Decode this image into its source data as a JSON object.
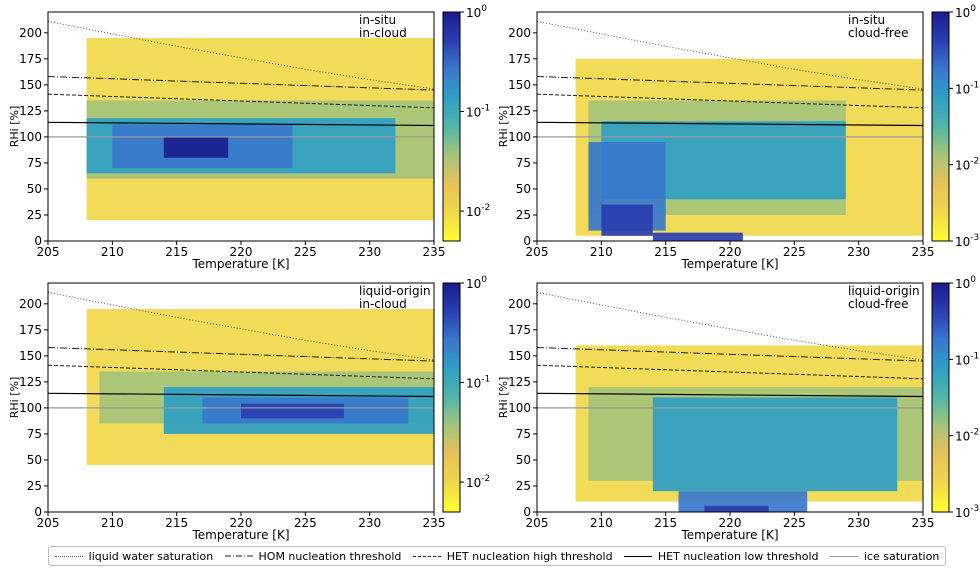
{
  "chart_data": [
    {
      "type": "heatmap",
      "title": "",
      "annotation": [
        "in-situ",
        "in-cloud"
      ],
      "xlabel": "Temperature [K]",
      "ylabel": "RHi [%]",
      "xlim": [
        205,
        235
      ],
      "ylim": [
        0,
        220
      ],
      "xticks": [
        "205",
        "210",
        "215",
        "220",
        "225",
        "230",
        "235"
      ],
      "yticks": [
        "0",
        "25",
        "50",
        "75",
        "100",
        "125",
        "150",
        "175",
        "200"
      ],
      "colorbar": {
        "scale": "log",
        "min": 0.005,
        "max": 1,
        "tick_values": [
          1,
          0.1,
          0.01
        ],
        "ticks": [
          "10",
          "10",
          "10"
        ],
        "exponents": [
          "0",
          "-1",
          "-2"
        ]
      },
      "density_regions": [
        {
          "T": [
            208,
            235
          ],
          "RH": [
            20,
            195
          ],
          "density": 0.008
        },
        {
          "T": [
            208,
            235
          ],
          "RH": [
            60,
            135
          ],
          "density": 0.03
        },
        {
          "T": [
            208,
            232
          ],
          "RH": [
            65,
            118
          ],
          "density": 0.1
        },
        {
          "T": [
            210,
            224
          ],
          "RH": [
            70,
            112
          ],
          "density": 0.3
        },
        {
          "T": [
            214,
            219
          ],
          "RH": [
            80,
            100
          ],
          "density": 0.8
        }
      ]
    },
    {
      "type": "heatmap",
      "title": "",
      "annotation": [
        "in-situ",
        "cloud-free"
      ],
      "xlabel": "Temperature [K]",
      "ylabel": "RHi [%]",
      "xlim": [
        205,
        235
      ],
      "ylim": [
        0,
        220
      ],
      "xticks": [
        "205",
        "210",
        "215",
        "220",
        "225",
        "230",
        "235"
      ],
      "yticks": [
        "0",
        "25",
        "50",
        "75",
        "100",
        "125",
        "150",
        "175",
        "200"
      ],
      "colorbar": {
        "scale": "log",
        "min": 0.001,
        "max": 1,
        "tick_values": [
          1,
          0.1,
          0.01,
          0.001
        ],
        "ticks": [
          "10",
          "10",
          "10",
          "10"
        ],
        "exponents": [
          "0",
          "-1",
          "-2",
          "-3"
        ]
      },
      "density_regions": [
        {
          "T": [
            208,
            235
          ],
          "RH": [
            5,
            175
          ],
          "density": 0.003
        },
        {
          "T": [
            209,
            229
          ],
          "RH": [
            25,
            135
          ],
          "density": 0.02
        },
        {
          "T": [
            210,
            229
          ],
          "RH": [
            40,
            115
          ],
          "density": 0.06
        },
        {
          "T": [
            209,
            215
          ],
          "RH": [
            10,
            95
          ],
          "density": 0.2
        },
        {
          "T": [
            210,
            214
          ],
          "RH": [
            5,
            35
          ],
          "density": 0.5
        },
        {
          "T": [
            214,
            221
          ],
          "RH": [
            0,
            8
          ],
          "density": 0.3
        }
      ]
    },
    {
      "type": "heatmap",
      "title": "",
      "annotation": [
        "liquid-origin",
        "in-cloud"
      ],
      "xlabel": "Temperature [K]",
      "ylabel": "RHi [%]",
      "xlim": [
        205,
        235
      ],
      "ylim": [
        0,
        220
      ],
      "xticks": [
        "205",
        "210",
        "215",
        "220",
        "225",
        "230",
        "235"
      ],
      "yticks": [
        "0",
        "25",
        "50",
        "75",
        "100",
        "125",
        "150",
        "175",
        "200"
      ],
      "colorbar": {
        "scale": "log",
        "min": 0.005,
        "max": 1,
        "tick_values": [
          1,
          0.1,
          0.01
        ],
        "ticks": [
          "10",
          "10",
          "10"
        ],
        "exponents": [
          "0",
          "-1",
          "-2"
        ]
      },
      "density_regions": [
        {
          "T": [
            208,
            235
          ],
          "RH": [
            45,
            195
          ],
          "density": 0.008
        },
        {
          "T": [
            209,
            235
          ],
          "RH": [
            85,
            135
          ],
          "density": 0.04
        },
        {
          "T": [
            214,
            235
          ],
          "RH": [
            75,
            120
          ],
          "density": 0.12
        },
        {
          "T": [
            217,
            233
          ],
          "RH": [
            85,
            110
          ],
          "density": 0.35
        },
        {
          "T": [
            220,
            228
          ],
          "RH": [
            90,
            104
          ],
          "density": 0.7
        }
      ]
    },
    {
      "type": "heatmap",
      "title": "",
      "annotation": [
        "liquid-origin",
        "cloud-free"
      ],
      "xlabel": "Temperature [K]",
      "ylabel": "RHi [%]",
      "xlim": [
        205,
        235
      ],
      "ylim": [
        0,
        220
      ],
      "xticks": [
        "205",
        "210",
        "215",
        "220",
        "225",
        "230",
        "235"
      ],
      "yticks": [
        "0",
        "25",
        "50",
        "75",
        "100",
        "125",
        "150",
        "175",
        "200"
      ],
      "colorbar": {
        "scale": "log",
        "min": 0.001,
        "max": 1,
        "tick_values": [
          1,
          0.1,
          0.01,
          0.001
        ],
        "ticks": [
          "10",
          "10",
          "10",
          "10"
        ],
        "exponents": [
          "0",
          "-1",
          "-2",
          "-3"
        ]
      },
      "density_regions": [
        {
          "T": [
            208,
            235
          ],
          "RH": [
            10,
            160
          ],
          "density": 0.003
        },
        {
          "T": [
            209,
            235
          ],
          "RH": [
            30,
            120
          ],
          "density": 0.015
        },
        {
          "T": [
            214,
            233
          ],
          "RH": [
            20,
            110
          ],
          "density": 0.05
        },
        {
          "T": [
            216,
            226
          ],
          "RH": [
            0,
            20
          ],
          "density": 0.2
        },
        {
          "T": [
            218,
            223
          ],
          "RH": [
            0,
            6
          ],
          "density": 0.5
        }
      ]
    }
  ],
  "reference_lines": [
    {
      "name": "liquid water saturation",
      "style": "dotted",
      "color": "#555555",
      "T": [
        205,
        210,
        215,
        220,
        225,
        230,
        235
      ],
      "RH": [
        211,
        199,
        187,
        176,
        165,
        155,
        146
      ]
    },
    {
      "name": "HOM nucleation threshold",
      "style": "dashdot",
      "color": "#222222",
      "T": [
        205,
        235
      ],
      "RH": [
        158,
        145
      ]
    },
    {
      "name": "HET nucleation high threshold",
      "style": "dashed",
      "color": "#222222",
      "T": [
        205,
        235
      ],
      "RH": [
        141,
        128
      ]
    },
    {
      "name": "HET nucleation low threshold",
      "style": "solid",
      "color": "#000000",
      "T": [
        205,
        235
      ],
      "RH": [
        114,
        111
      ]
    },
    {
      "name": "ice saturation",
      "style": "solid",
      "color": "#999999",
      "T": [
        205,
        235
      ],
      "RH": [
        100,
        100
      ]
    }
  ],
  "colormap": [
    "#ffff33",
    "#f1d84b",
    "#e8c25a",
    "#a6c47a",
    "#52b6a8",
    "#2fa0c4",
    "#3a78cc",
    "#2a3eb1",
    "#1b1c8e"
  ]
}
